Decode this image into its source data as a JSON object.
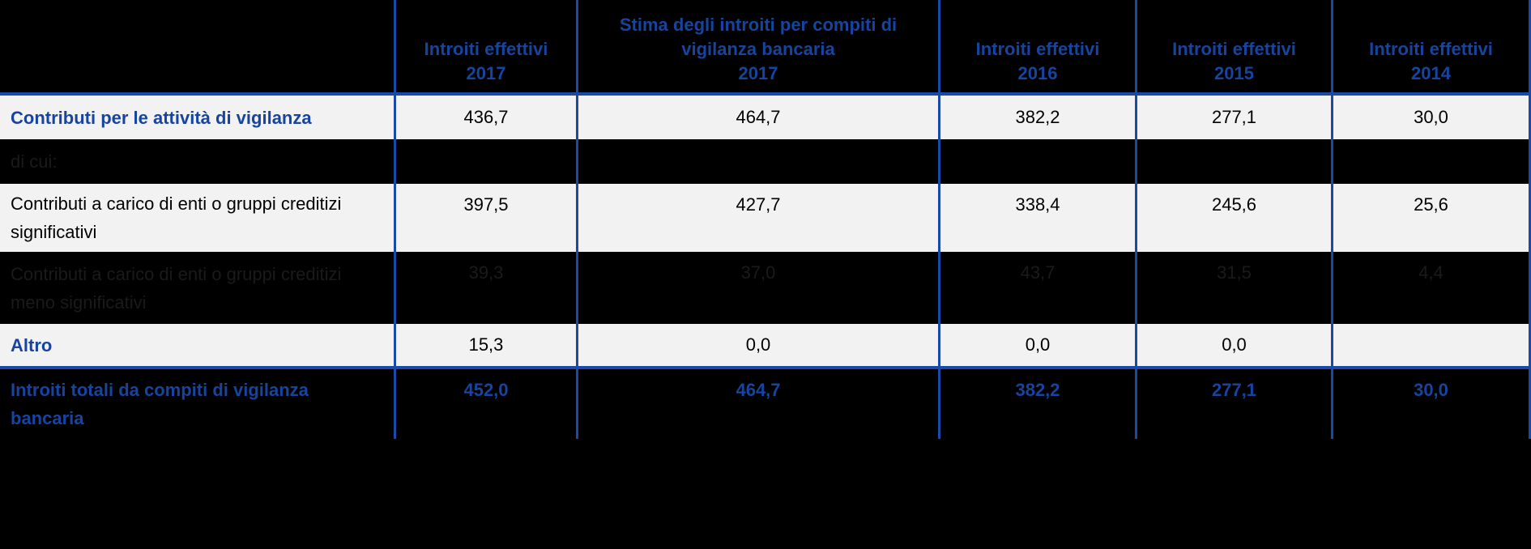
{
  "table": {
    "headers": [
      "",
      "Introiti effettivi\n2017",
      "Stima degli introiti per compiti di\nvigilanza bancaria\n2017",
      "Introiti effettivi\n2016",
      "Introiti effettivi\n2015",
      "Introiti effettivi\n2014"
    ],
    "rows": [
      {
        "label": "Contributi per le attività di vigilanza",
        "values": [
          "436,7",
          "464,7",
          "382,2",
          "277,1",
          "30,0"
        ]
      },
      {
        "label": "di cui:",
        "values": [
          "",
          "",
          "",
          "",
          ""
        ]
      },
      {
        "label": "Contributi a carico di enti o gruppi creditizi\nsignificativi",
        "values": [
          "397,5",
          "427,7",
          "338,4",
          "245,6",
          "25,6"
        ]
      },
      {
        "label": "Contributi a carico di enti o gruppi creditizi\nmeno significativi",
        "values": [
          "39,3",
          "37,0",
          "43,7",
          "31,5",
          "4,4"
        ]
      },
      {
        "label": "Altro",
        "values": [
          "15,3",
          "0,0",
          "0,0",
          "0,0",
          ""
        ]
      },
      {
        "label": "Introiti totali da compiti di vigilanza\nbancaria",
        "values": [
          "452,0",
          "464,7",
          "382,2",
          "277,1",
          "30,0"
        ]
      }
    ]
  },
  "colors": {
    "accent_blue_text": "#16449F",
    "border_blue": "#1A49A8",
    "row_light_bg": "#F2F2F2",
    "hidden_row_text": "#1A1A1A",
    "page_bg": "#000000"
  }
}
